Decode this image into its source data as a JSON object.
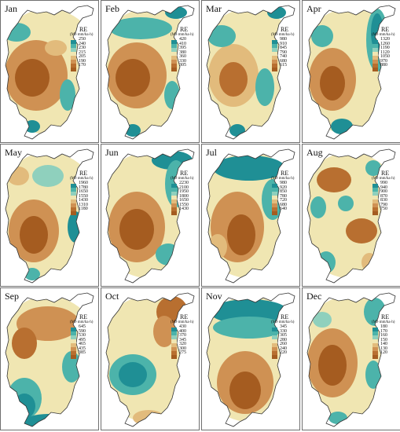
{
  "legend": {
    "title": "RE",
    "unit": "(MJ·mm/ha·h)"
  },
  "colors": [
    "#1f8f95",
    "#4cb3aa",
    "#8fd0bd",
    "#f0e6b2",
    "#e2bb7c",
    "#cf9153",
    "#b86f30",
    "#a55c20"
  ],
  "panels": [
    {
      "title": "Jan",
      "ticks": [
        "250",
        "240",
        "230",
        "215",
        "205",
        "190",
        "170"
      ]
    },
    {
      "title": "Feb",
      "ticks": [
        "420",
        "410",
        "395",
        "380",
        "360",
        "330",
        "305"
      ]
    },
    {
      "title": "Mar",
      "ticks": [
        "980",
        "910",
        "845",
        "790",
        "740",
        "680",
        "615"
      ]
    },
    {
      "title": "Apr",
      "ticks": [
        "1320",
        "1260",
        "1190",
        "1120",
        "1050",
        "970",
        "880"
      ]
    },
    {
      "title": "May",
      "ticks": [
        "1960",
        "1780",
        "1650",
        "1550",
        "1430",
        "1310",
        "1180"
      ]
    },
    {
      "title": "Jun",
      "ticks": [
        "2230",
        "2100",
        "1950",
        "1800",
        "1650",
        "1550",
        "1430"
      ]
    },
    {
      "title": "Jul",
      "ticks": [
        "980",
        "920",
        "850",
        "780",
        "720",
        "680",
        "640"
      ]
    },
    {
      "title": "Aug",
      "ticks": [
        "990",
        "940",
        "900",
        "870",
        "830",
        "790",
        "750"
      ]
    },
    {
      "title": "Sep",
      "ticks": [
        "645",
        "590",
        "530",
        "495",
        "465",
        "435",
        "385"
      ]
    },
    {
      "title": "Oct",
      "ticks": [
        "430",
        "400",
        "370",
        "345",
        "320",
        "300",
        "275"
      ]
    },
    {
      "title": "Nov",
      "ticks": [
        "345",
        "330",
        "305",
        "280",
        "260",
        "240",
        "220"
      ]
    },
    {
      "title": "Dec",
      "ticks": [
        "180",
        "170",
        "160",
        "150",
        "140",
        "130",
        "120"
      ]
    }
  ]
}
